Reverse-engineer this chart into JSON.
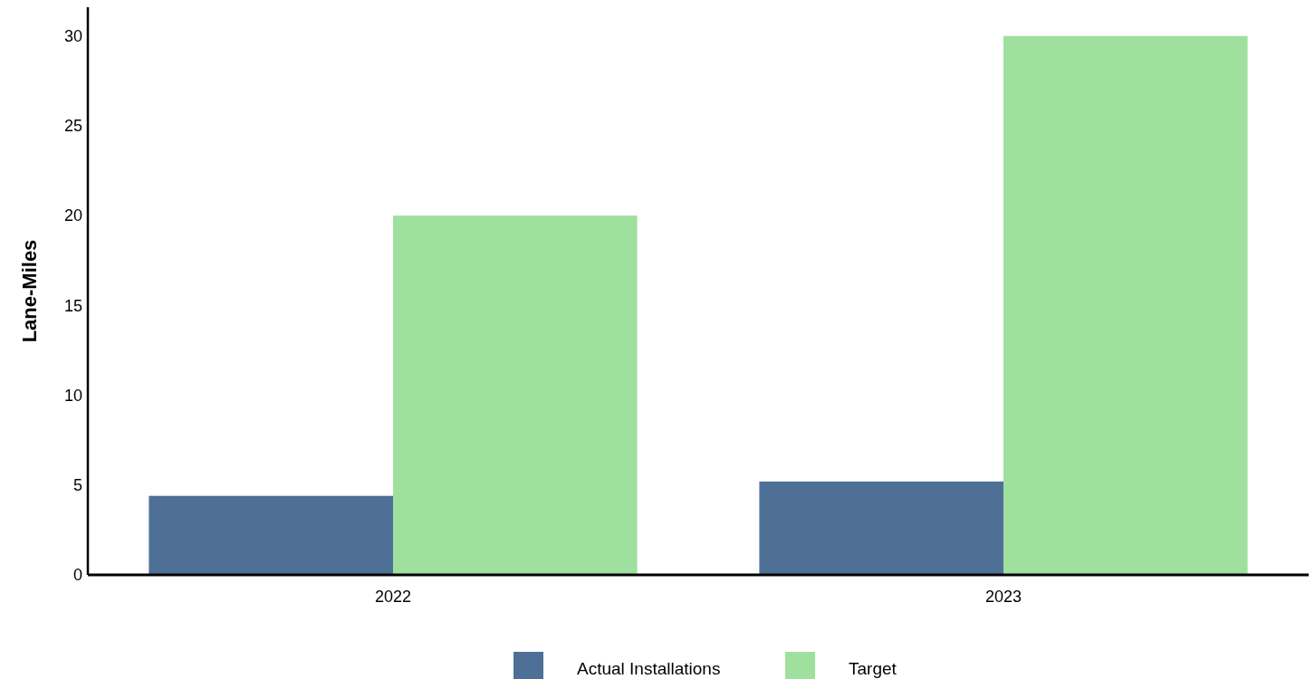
{
  "chart_data": {
    "type": "bar",
    "ylabel": "Lane-Miles",
    "categories": [
      "2022",
      "2023"
    ],
    "series": [
      {
        "name": "Actual Installations",
        "color": "#4f7096",
        "values": [
          4.4,
          5.2
        ]
      },
      {
        "name": "Target",
        "color": "#a0e09f",
        "values": [
          20,
          30
        ]
      }
    ],
    "ylim": [
      0,
      31.6
    ],
    "yticks": [
      0,
      5,
      10,
      15,
      20,
      25,
      30
    ],
    "grid": false,
    "legend": "bottom"
  }
}
